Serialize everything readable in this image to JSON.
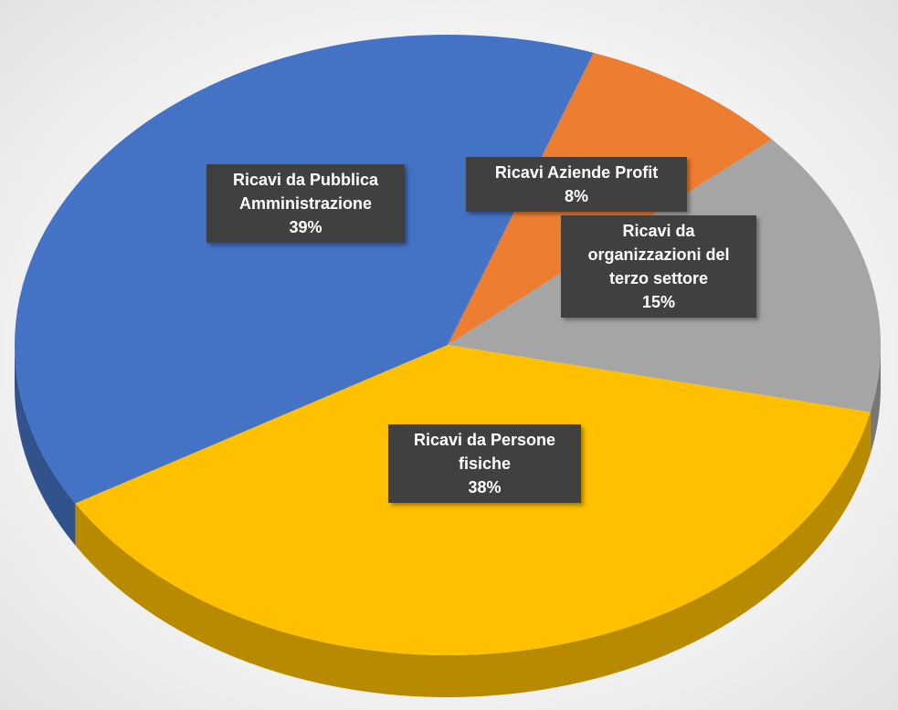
{
  "chart_data": {
    "type": "pie",
    "categories": [
      "Ricavi Aziende Profit",
      "Ricavi da organizzazioni del terzo settore",
      "Ricavi da Persone fisiche",
      "Ricavi da Pubblica Amministrazione"
    ],
    "values": [
      8,
      15,
      38,
      39
    ],
    "value_labels": [
      "8%",
      "15%",
      "38%",
      "39%"
    ],
    "colors": [
      "#ed7d31",
      "#a5a5a5",
      "#ffc000",
      "#4472c4"
    ]
  }
}
